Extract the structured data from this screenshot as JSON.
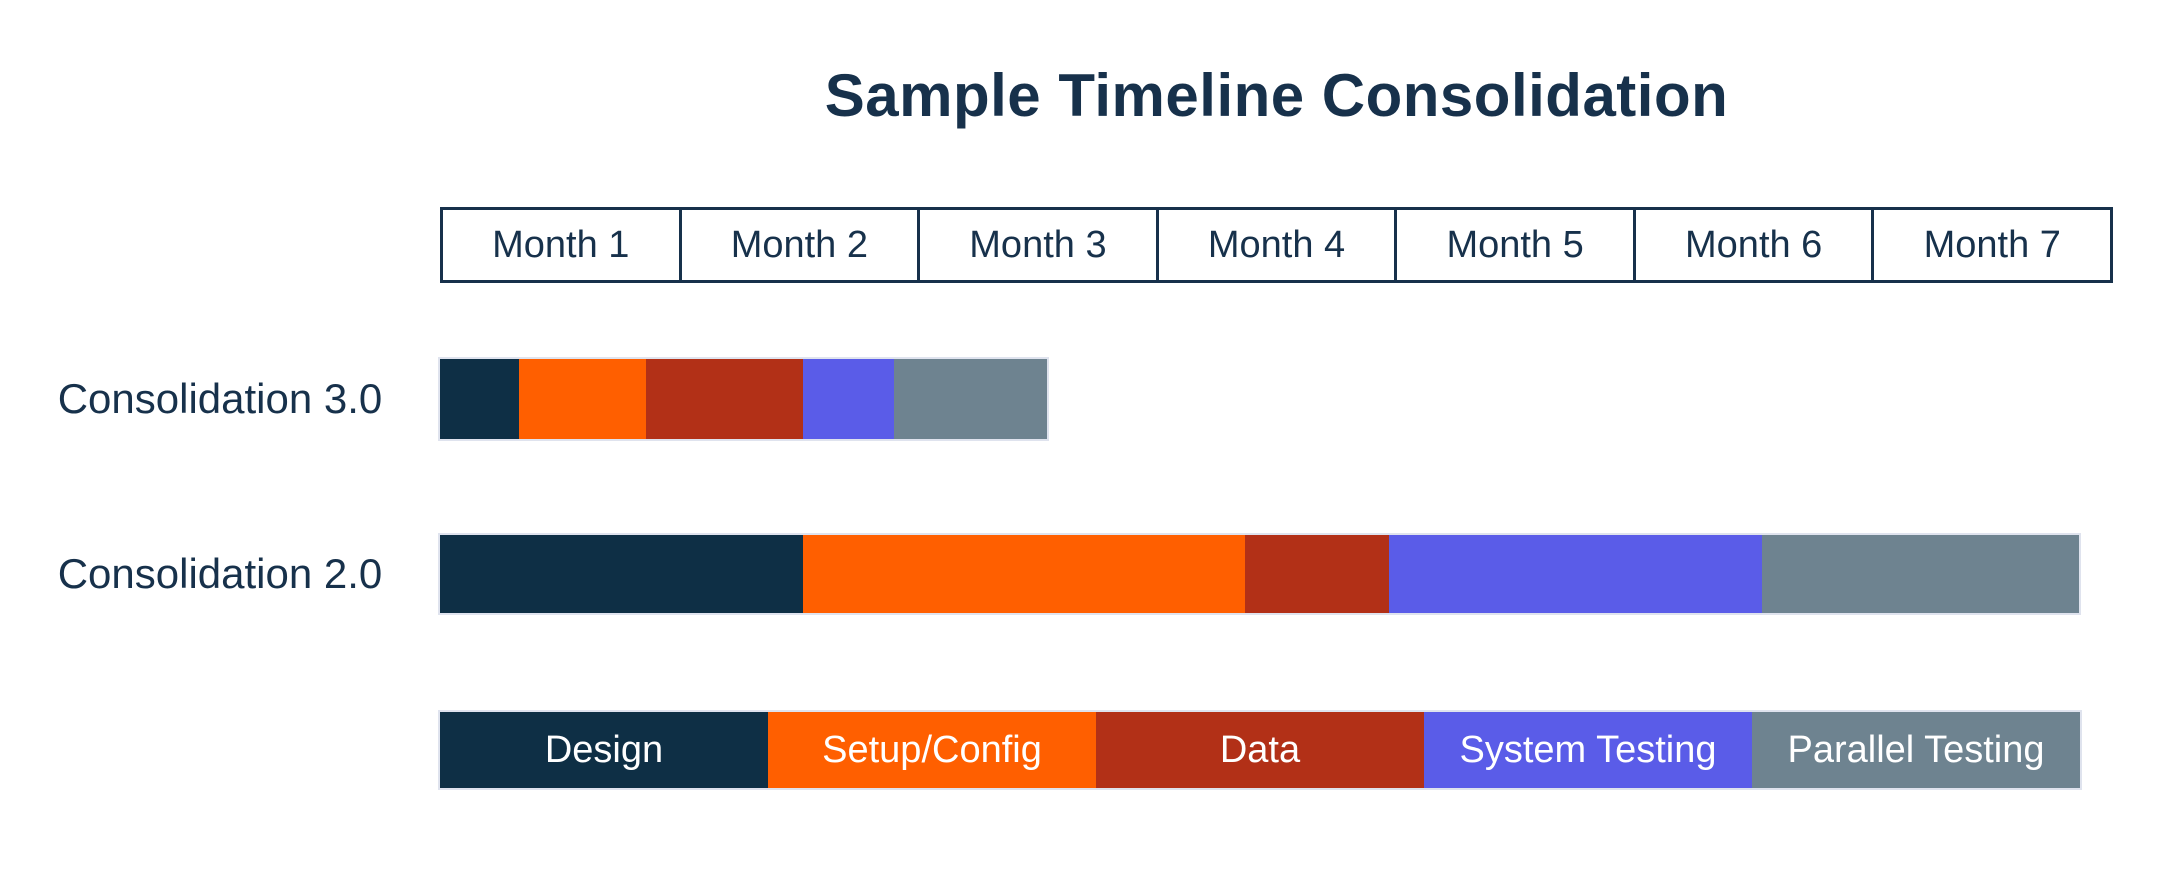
{
  "title": "Sample Timeline Consolidation",
  "colors": {
    "navy": "#0E2F45",
    "orange": "#FF5F00",
    "brick": "#B23017",
    "purple": "#5A5CE8",
    "slate": "#6E8390",
    "text": "#17314B",
    "background": "#FFFFFF"
  },
  "chart_data": {
    "type": "gantt",
    "title": "Sample Timeline Consolidation",
    "x_axis": {
      "unit": "months",
      "labels": [
        "Month 1",
        "Month 2",
        "Month 3",
        "Month 4",
        "Month 5",
        "Month 6",
        "Month 7"
      ],
      "range": [
        0,
        7
      ],
      "style": "boxed-header-cells"
    },
    "phases": [
      {
        "name": "Design",
        "color_key": "navy"
      },
      {
        "name": "Setup/Config",
        "color_key": "orange"
      },
      {
        "name": "Data",
        "color_key": "brick"
      },
      {
        "name": "System Testing",
        "color_key": "purple"
      },
      {
        "name": "Parallel Testing",
        "color_key": "slate"
      }
    ],
    "rows": [
      {
        "label": "Consolidation 3.0",
        "segments": [
          {
            "phase": "Design",
            "start_month": 0,
            "end_month": 0.33
          },
          {
            "phase": "Setup/Config",
            "start_month": 0.33,
            "end_month": 0.86
          },
          {
            "phase": "Data",
            "start_month": 0.86,
            "end_month": 1.52
          },
          {
            "phase": "System Testing",
            "start_month": 1.52,
            "end_month": 1.9
          },
          {
            "phase": "Parallel Testing",
            "start_month": 1.9,
            "end_month": 2.54
          }
        ]
      },
      {
        "label": "Consolidation 2.0",
        "segments": [
          {
            "phase": "Design",
            "start_month": 0,
            "end_month": 1.52
          },
          {
            "phase": "Setup/Config",
            "start_month": 1.52,
            "end_month": 3.37
          },
          {
            "phase": "Data",
            "start_month": 3.37,
            "end_month": 3.97
          },
          {
            "phase": "System Testing",
            "start_month": 3.97,
            "end_month": 5.53
          },
          {
            "phase": "Parallel Testing",
            "start_month": 5.53,
            "end_month": 6.86
          }
        ]
      }
    ],
    "legend": {
      "position": "bottom",
      "entries": [
        "Design",
        "Setup/Config",
        "Data",
        "System Testing",
        "Parallel Testing"
      ]
    }
  }
}
